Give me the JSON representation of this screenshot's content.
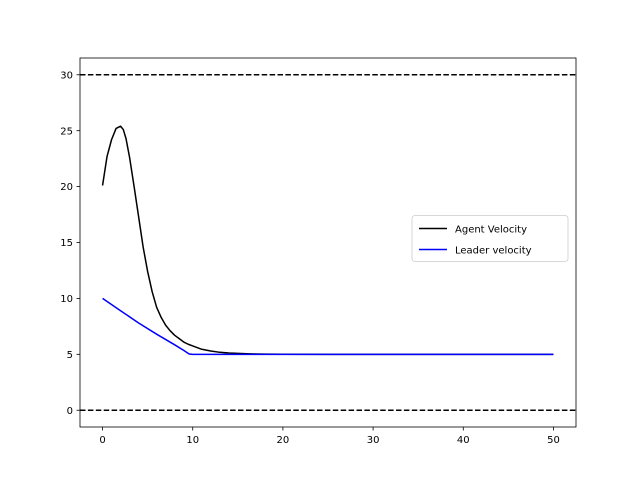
{
  "chart_data": {
    "type": "line",
    "title": "",
    "xlabel": "",
    "ylabel": "",
    "xlim": [
      -2.5,
      52.5
    ],
    "ylim": [
      -1.5,
      31.5
    ],
    "xticks": [
      0,
      10,
      20,
      30,
      40,
      50
    ],
    "yticks": [
      0,
      5,
      10,
      15,
      20,
      25,
      30
    ],
    "grid": false,
    "legend_position": "center-right",
    "series": [
      {
        "name": "Agent Velocity",
        "color": "#000000",
        "x": [
          0,
          0.5,
          1,
          1.5,
          2,
          2.3,
          2.6,
          3,
          3.5,
          4,
          4.5,
          5,
          5.5,
          6,
          6.5,
          7,
          7.5,
          8,
          8.5,
          9,
          9.5,
          10,
          11,
          12,
          13,
          14,
          15,
          16,
          17,
          18,
          20,
          25,
          30,
          40,
          50
        ],
        "y": [
          20.1,
          22.7,
          24.2,
          25.2,
          25.4,
          25.1,
          24.3,
          22.6,
          20.0,
          17.3,
          14.6,
          12.4,
          10.6,
          9.2,
          8.3,
          7.6,
          7.1,
          6.7,
          6.4,
          6.1,
          5.9,
          5.75,
          5.45,
          5.3,
          5.18,
          5.12,
          5.08,
          5.05,
          5.03,
          5.02,
          5.01,
          5.0,
          5.0,
          5.0,
          5.0
        ]
      },
      {
        "name": "Leader velocity",
        "color": "#0000ff",
        "x": [
          0,
          2,
          4,
          6,
          8,
          9,
          9.6,
          10,
          20,
          30,
          40,
          50
        ],
        "y": [
          10.0,
          8.9,
          7.8,
          6.8,
          5.85,
          5.35,
          5.03,
          5.0,
          5.0,
          5.0,
          5.0,
          5.0
        ]
      }
    ],
    "reference_lines": [
      {
        "axis": "y",
        "value": 30,
        "color": "#000000",
        "style": "dashed"
      },
      {
        "axis": "y",
        "value": 0,
        "color": "#000000",
        "style": "dashed"
      }
    ]
  }
}
